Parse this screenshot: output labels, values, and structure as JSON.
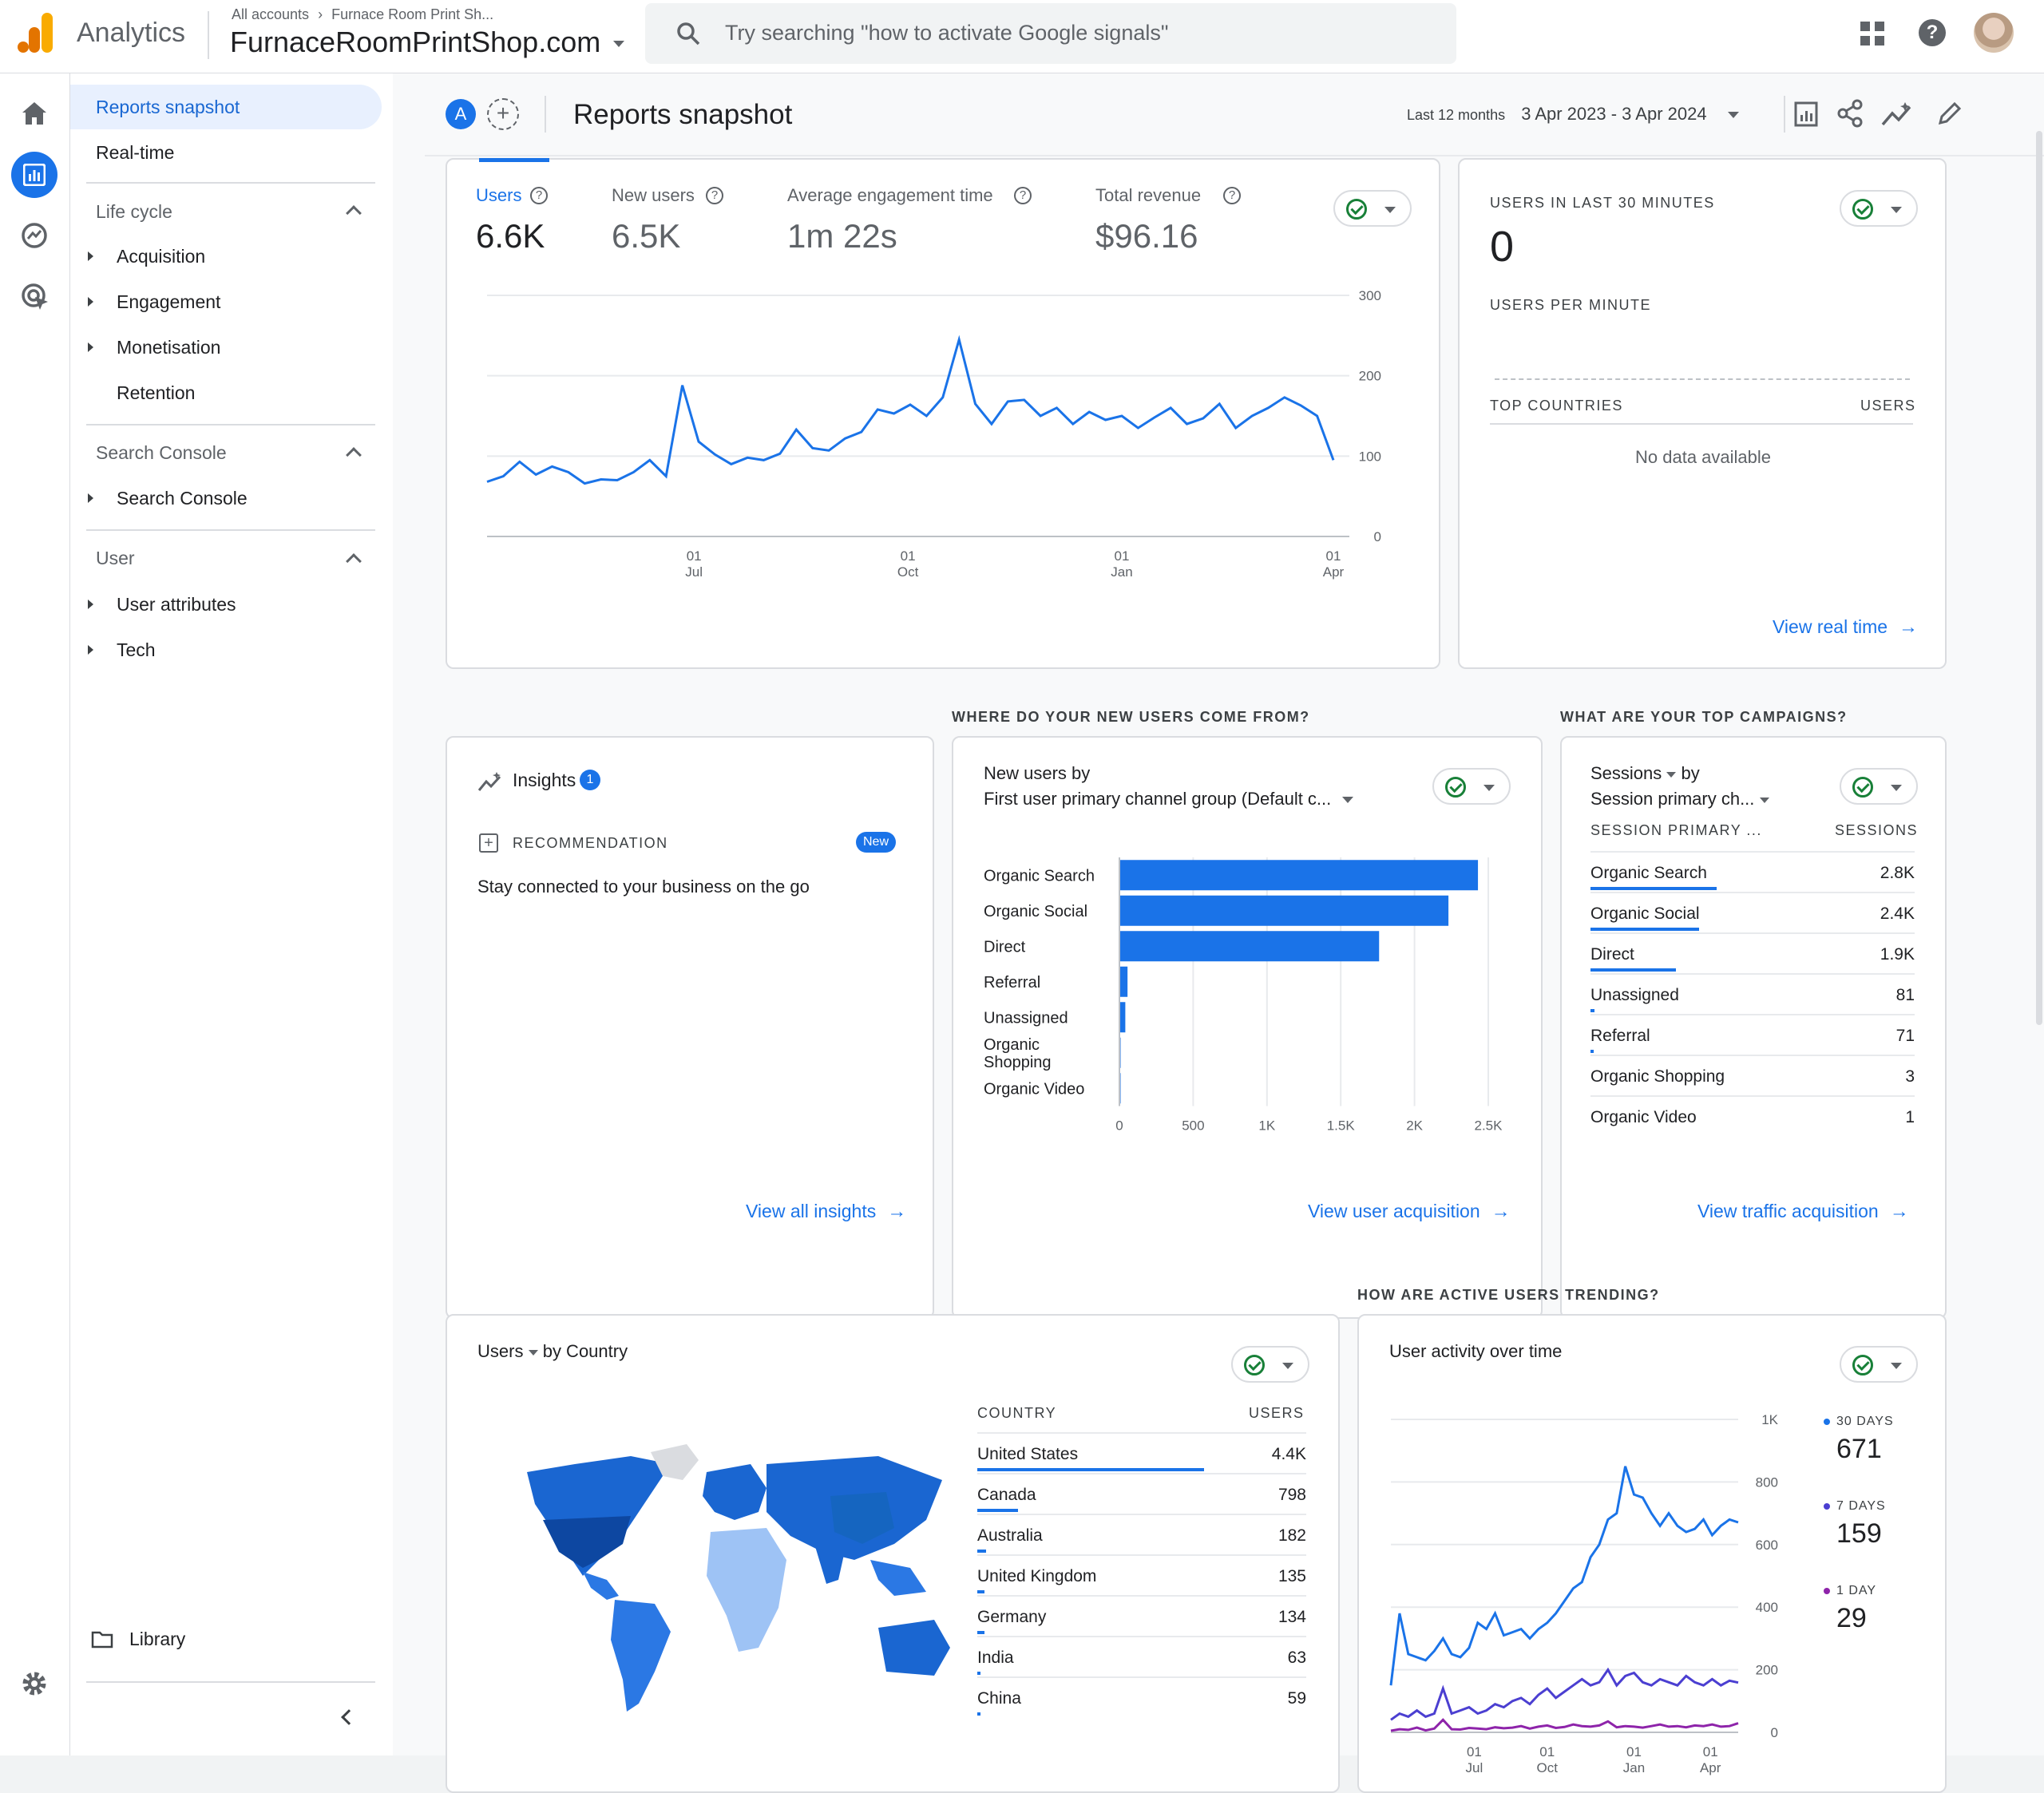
{
  "app": {
    "name": "Analytics"
  },
  "account": {
    "breadcrumb_root": "All accounts",
    "breadcrumb_child": "Furnace Room Print Sh...",
    "property": "FurnaceRoomPrintShop.com"
  },
  "search": {
    "placeholder": "Try searching \"how to activate Google signals\""
  },
  "sidebar": {
    "items": [
      {
        "label": "Reports snapshot",
        "active": true
      },
      {
        "label": "Real-time"
      }
    ],
    "sections": [
      {
        "label": "Life cycle",
        "items": [
          "Acquisition",
          "Engagement",
          "Monetisation",
          "Retention"
        ]
      },
      {
        "label": "Search Console",
        "items": [
          "Search Console"
        ]
      },
      {
        "label": "User",
        "items": [
          "User attributes",
          "Tech"
        ]
      }
    ],
    "library": "Library"
  },
  "page": {
    "title": "Reports snapshot",
    "comparison_badge": "A",
    "date_prefix": "Last 12 months",
    "date_range": "3 Apr 2023 - 3 Apr 2024"
  },
  "metrics": [
    {
      "label": "Users",
      "value": "6.6K"
    },
    {
      "label": "New users",
      "value": "6.5K"
    },
    {
      "label": "Average engagement time",
      "value": "1m 22s"
    },
    {
      "label": "Total revenue",
      "value": "$96.16"
    }
  ],
  "realtime": {
    "title": "USERS IN LAST 30 MINUTES",
    "value": "0",
    "per_minute": "USERS PER MINUTE",
    "col1": "TOP COUNTRIES",
    "col2": "USERS",
    "empty": "No data available",
    "link": "View real time"
  },
  "section_titles": {
    "new_users": "WHERE DO YOUR NEW USERS COME FROM?",
    "campaigns": "WHAT ARE YOUR TOP CAMPAIGNS?",
    "trending": "HOW ARE ACTIVE USERS TRENDING?"
  },
  "insights": {
    "title": "Insights",
    "count": "1",
    "rec_label": "RECOMMENDATION",
    "badge": "New",
    "text": "Stay connected to your business on the go",
    "link": "View all insights"
  },
  "acquisition": {
    "title_line1": "New users by",
    "title_line2": "First user primary channel group (Default c...",
    "link": "View user acquisition"
  },
  "campaigns": {
    "metric": "Sessions",
    "by": "by",
    "dimension": "Session primary ch...",
    "col1": "SESSION PRIMARY ...",
    "col2": "SESSIONS",
    "link": "View traffic acquisition",
    "rows": [
      {
        "name": "Organic Search",
        "value": "2.8K",
        "frac": 1.0
      },
      {
        "name": "Organic Social",
        "value": "2.4K",
        "frac": 0.86
      },
      {
        "name": "Direct",
        "value": "1.9K",
        "frac": 0.68
      },
      {
        "name": "Unassigned",
        "value": "81",
        "frac": 0.03
      },
      {
        "name": "Referral",
        "value": "71",
        "frac": 0.025
      },
      {
        "name": "Organic Shopping",
        "value": "3",
        "frac": 0.0
      },
      {
        "name": "Organic Video",
        "value": "1",
        "frac": 0.0
      }
    ]
  },
  "country": {
    "metric": "Users",
    "by": "by Country",
    "col1": "COUNTRY",
    "col2": "USERS",
    "rows": [
      {
        "name": "United States",
        "value": "4.4K",
        "frac": 1.0
      },
      {
        "name": "Canada",
        "value": "798",
        "frac": 0.18
      },
      {
        "name": "Australia",
        "value": "182",
        "frac": 0.04
      },
      {
        "name": "United Kingdom",
        "value": "135",
        "frac": 0.03
      },
      {
        "name": "Germany",
        "value": "134",
        "frac": 0.03
      },
      {
        "name": "India",
        "value": "63",
        "frac": 0.015
      },
      {
        "name": "China",
        "value": "59",
        "frac": 0.013
      }
    ]
  },
  "activity": {
    "title": "User activity over time",
    "legend": [
      {
        "label": "30 DAYS",
        "value": "671",
        "color": "#1a73e8"
      },
      {
        "label": "7 DAYS",
        "value": "159",
        "color": "#4b3fd1"
      },
      {
        "label": "1 DAY",
        "value": "29",
        "color": "#8e24aa"
      }
    ]
  },
  "colors": {
    "accent": "#1a73e8",
    "ok": "#188038",
    "logo_orange": "#f9ab00",
    "logo_dark": "#e37400"
  },
  "chart_data": [
    {
      "type": "line",
      "title": "Users",
      "x_ticks": [
        [
          "01",
          "Jul"
        ],
        [
          "01",
          "Oct"
        ],
        [
          "01",
          "Jan"
        ],
        [
          "01",
          "Apr"
        ]
      ],
      "y_ticks": [
        0,
        100,
        200,
        300
      ],
      "ylim": [
        0,
        300
      ],
      "x": [
        "2023-04-03",
        "2023-04-10",
        "2023-04-17",
        "2023-04-24",
        "2023-05-01",
        "2023-05-08",
        "2023-05-15",
        "2023-05-22",
        "2023-05-29",
        "2023-06-05",
        "2023-06-12",
        "2023-06-19",
        "2023-06-26",
        "2023-07-03",
        "2023-07-10",
        "2023-07-17",
        "2023-07-24",
        "2023-07-31",
        "2023-08-07",
        "2023-08-14",
        "2023-08-21",
        "2023-08-28",
        "2023-09-04",
        "2023-09-11",
        "2023-09-18",
        "2023-09-25",
        "2023-10-02",
        "2023-10-09",
        "2023-10-16",
        "2023-10-23",
        "2023-10-30",
        "2023-11-06",
        "2023-11-13",
        "2023-11-20",
        "2023-11-27",
        "2023-12-04",
        "2023-12-11",
        "2023-12-18",
        "2023-12-25",
        "2024-01-01",
        "2024-01-08",
        "2024-01-15",
        "2024-01-22",
        "2024-01-29",
        "2024-02-05",
        "2024-02-12",
        "2024-02-19",
        "2024-02-26",
        "2024-03-04",
        "2024-03-11",
        "2024-03-18",
        "2024-03-25",
        "2024-04-01"
      ],
      "series": [
        {
          "name": "Users",
          "values": [
            68,
            75,
            93,
            77,
            87,
            80,
            66,
            71,
            70,
            80,
            95,
            75,
            188,
            118,
            102,
            90,
            98,
            95,
            103,
            133,
            110,
            107,
            122,
            130,
            158,
            153,
            164,
            150,
            173,
            245,
            165,
            140,
            168,
            170,
            150,
            160,
            140,
            155,
            145,
            150,
            135,
            148,
            160,
            140,
            147,
            165,
            135,
            150,
            160,
            173,
            163,
            150,
            95
          ]
        }
      ]
    },
    {
      "type": "bar",
      "title": "New users by First user primary channel group (Default c...",
      "categories": [
        "Organic Search",
        "Organic Social",
        "Direct",
        "Referral",
        "Unassigned",
        "Organic Shopping",
        "Organic Video"
      ],
      "values": [
        2430,
        2230,
        1760,
        55,
        40,
        3,
        1
      ],
      "x_ticks": [
        "0",
        "500",
        "1K",
        "1.5K",
        "2K",
        "2.5K"
      ],
      "xlim": [
        0,
        2500
      ]
    },
    {
      "type": "line",
      "title": "User activity over time",
      "y_ticks": [
        "0",
        "200",
        "400",
        "600",
        "800",
        "1K"
      ],
      "ylim": [
        0,
        1000
      ],
      "x_ticks": [
        [
          "01",
          "Jul"
        ],
        [
          "01",
          "Oct"
        ],
        [
          "01",
          "Jan"
        ],
        [
          "01",
          "Apr"
        ]
      ],
      "series": [
        {
          "name": "30 DAYS",
          "values": [
            150,
            380,
            250,
            240,
            230,
            260,
            300,
            250,
            240,
            270,
            350,
            330,
            380,
            310,
            320,
            330,
            300,
            330,
            350,
            380,
            420,
            460,
            480,
            560,
            600,
            680,
            700,
            850,
            760,
            750,
            700,
            660,
            700,
            660,
            640,
            650,
            680,
            630,
            660,
            680,
            671
          ]
        },
        {
          "name": "7 DAYS",
          "values": [
            40,
            60,
            50,
            70,
            50,
            60,
            140,
            60,
            70,
            80,
            60,
            70,
            90,
            80,
            100,
            110,
            90,
            120,
            140,
            110,
            130,
            150,
            170,
            150,
            160,
            200,
            150,
            180,
            190,
            160,
            150,
            170,
            160,
            150,
            180,
            160,
            150,
            170,
            150,
            165,
            159
          ]
        },
        {
          "name": "1 DAY",
          "values": [
            5,
            10,
            8,
            15,
            6,
            12,
            40,
            10,
            9,
            14,
            12,
            10,
            16,
            13,
            15,
            20,
            12,
            18,
            22,
            14,
            17,
            25,
            20,
            18,
            22,
            35,
            16,
            20,
            18,
            15,
            20,
            25,
            18,
            20,
            16,
            22,
            20,
            25,
            18,
            20,
            29
          ]
        }
      ]
    }
  ]
}
